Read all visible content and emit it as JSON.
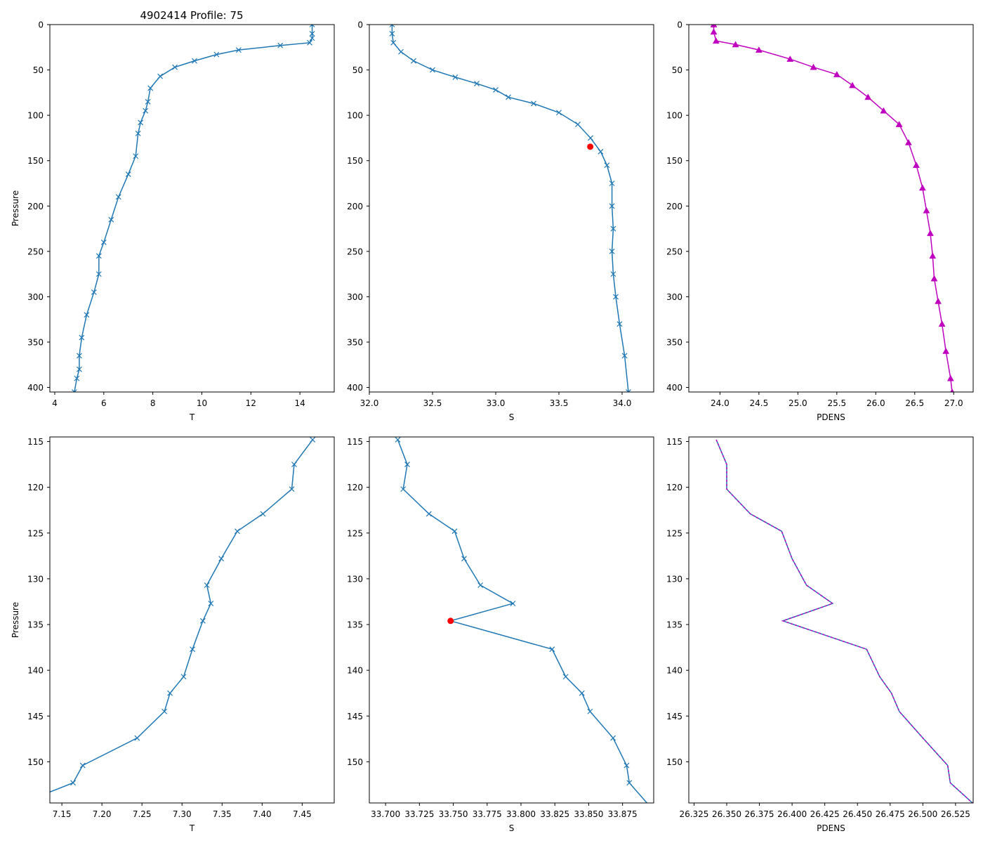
{
  "figure_title": "4902414 Profile: 75",
  "colors": {
    "line": "#1f77b4",
    "pdens": "#bf00bf",
    "flag": "#ff0000",
    "frame": "#000000"
  },
  "chart_data": [
    {
      "id": "top-temperature",
      "type": "line",
      "marker": "x",
      "title": "4902414 Profile: 75",
      "xlabel": "T",
      "ylabel": "Pressure",
      "xlim": [
        3.8,
        15.4
      ],
      "ylim": [
        405,
        0
      ],
      "xticks": [
        4,
        6,
        8,
        10,
        12,
        14
      ],
      "yticks": [
        0,
        50,
        100,
        150,
        200,
        250,
        300,
        350,
        400
      ],
      "series": [
        {
          "name": "T",
          "x": [
            14.5,
            14.5,
            14.5,
            14.4,
            13.2,
            11.5,
            10.6,
            9.7,
            8.9,
            8.3,
            7.9,
            7.8,
            7.7,
            7.5,
            7.4,
            7.3,
            7.0,
            6.6,
            6.3,
            6.0,
            5.8,
            5.8,
            5.6,
            5.3,
            5.1,
            5.0,
            5.0,
            4.9,
            4.8
          ],
          "y": [
            0,
            10,
            15,
            20,
            23,
            28,
            33,
            40,
            47,
            57,
            70,
            85,
            95,
            108,
            120,
            145,
            165,
            190,
            215,
            240,
            255,
            275,
            295,
            320,
            345,
            365,
            380,
            390,
            405
          ]
        }
      ]
    },
    {
      "id": "top-salinity",
      "type": "line",
      "marker": "x",
      "xlabel": "S",
      "ylabel": "",
      "xlim": [
        32.0,
        34.25
      ],
      "ylim": [
        405,
        0
      ],
      "xticks": [
        32.0,
        32.5,
        33.0,
        33.5,
        34.0
      ],
      "yticks": [
        0,
        50,
        100,
        150,
        200,
        250,
        300,
        350,
        400
      ],
      "series": [
        {
          "name": "S",
          "x": [
            32.18,
            32.18,
            32.19,
            32.25,
            32.35,
            32.5,
            32.68,
            32.85,
            33.0,
            33.1,
            33.3,
            33.5,
            33.65,
            33.75,
            33.83,
            33.88,
            33.92,
            33.92,
            33.93,
            33.92,
            33.93,
            33.95,
            33.98,
            34.02,
            34.05
          ],
          "y": [
            0,
            10,
            20,
            30,
            40,
            50,
            58,
            65,
            72,
            80,
            87,
            97,
            110,
            125,
            140,
            155,
            175,
            200,
            225,
            250,
            275,
            300,
            330,
            365,
            405
          ]
        }
      ],
      "flag_points": [
        {
          "x": 33.748,
          "y": 134.6
        }
      ]
    },
    {
      "id": "top-pdens",
      "type": "line",
      "marker": "^",
      "xlabel": "PDENS",
      "ylabel": "",
      "xlim": [
        23.6,
        27.25
      ],
      "ylim": [
        405,
        0
      ],
      "xticks": [
        24.0,
        24.5,
        25.0,
        25.5,
        26.0,
        26.5,
        27.0
      ],
      "yticks": [
        0,
        50,
        100,
        150,
        200,
        250,
        300,
        350,
        400
      ],
      "series": [
        {
          "name": "PDENS",
          "x": [
            23.92,
            23.92,
            23.95,
            24.2,
            24.5,
            24.9,
            25.2,
            25.5,
            25.7,
            25.9,
            26.1,
            26.3,
            26.42,
            26.52,
            26.6,
            26.65,
            26.7,
            26.73,
            26.75,
            26.8,
            26.85,
            26.9,
            26.96,
            26.98
          ],
          "y": [
            0,
            8,
            18,
            22,
            28,
            38,
            47,
            55,
            67,
            80,
            95,
            110,
            130,
            155,
            180,
            205,
            230,
            255,
            280,
            305,
            330,
            360,
            390,
            405
          ]
        }
      ]
    },
    {
      "id": "bottom-temperature",
      "type": "line",
      "marker": "x",
      "xlabel": "T",
      "ylabel": "Pressure",
      "xlim": [
        7.135,
        7.49
      ],
      "ylim": [
        154.5,
        114.5
      ],
      "xticks": [
        7.15,
        7.2,
        7.25,
        7.3,
        7.35,
        7.4,
        7.45
      ],
      "yticks": [
        115,
        120,
        125,
        130,
        135,
        140,
        145,
        150
      ],
      "series": [
        {
          "name": "T",
          "x": [
            7.463,
            7.44,
            7.437,
            7.401,
            7.369,
            7.349,
            7.331,
            7.336,
            7.326,
            7.313,
            7.302,
            7.285,
            7.278,
            7.244,
            7.176,
            7.164,
            7.135
          ],
          "y": [
            114.8,
            117.5,
            120.2,
            122.9,
            124.8,
            127.8,
            130.7,
            132.7,
            134.6,
            137.7,
            140.7,
            142.5,
            144.5,
            147.4,
            150.4,
            152.3,
            153.3
          ],
          "markers": [
            true,
            true,
            true,
            true,
            true,
            true,
            true,
            true,
            true,
            true,
            true,
            true,
            true,
            true,
            true,
            true,
            false
          ]
        }
      ]
    },
    {
      "id": "bottom-salinity",
      "type": "line",
      "marker": "x",
      "xlabel": "S",
      "ylabel": "",
      "xlim": [
        33.688,
        33.898
      ],
      "ylim": [
        154.5,
        114.5
      ],
      "xticks": [
        33.7,
        33.725,
        33.75,
        33.775,
        33.8,
        33.825,
        33.85,
        33.875
      ],
      "yticks": [
        115,
        120,
        125,
        130,
        135,
        140,
        145,
        150
      ],
      "series": [
        {
          "name": "S",
          "x": [
            33.709,
            33.716,
            33.713,
            33.732,
            33.751,
            33.758,
            33.77,
            33.794,
            33.748,
            33.823,
            33.833,
            33.845,
            33.851,
            33.868,
            33.878,
            33.88,
            33.893
          ],
          "y": [
            114.8,
            117.5,
            120.2,
            122.9,
            124.8,
            127.8,
            130.7,
            132.7,
            134.6,
            137.7,
            140.7,
            142.5,
            144.5,
            147.4,
            150.4,
            152.3,
            154.5
          ],
          "markers": [
            true,
            true,
            true,
            true,
            true,
            true,
            true,
            true,
            false,
            true,
            true,
            true,
            true,
            true,
            true,
            true,
            false
          ]
        }
      ],
      "flag_points": [
        {
          "x": 33.748,
          "y": 134.6
        }
      ]
    },
    {
      "id": "bottom-pdens",
      "type": "line",
      "marker": "none",
      "xlabel": "PDENS",
      "ylabel": "",
      "xlim": [
        26.321,
        26.5385
      ],
      "ylim": [
        154.5,
        114.5
      ],
      "xticks": [
        26.325,
        26.35,
        26.375,
        26.4,
        26.425,
        26.45,
        26.475,
        26.5,
        26.525
      ],
      "yticks": [
        115,
        120,
        125,
        130,
        135,
        140,
        145,
        150
      ],
      "series": [
        {
          "name": "PDENS",
          "x": [
            26.342,
            26.35,
            26.35,
            26.368,
            26.392,
            26.4,
            26.411,
            26.431,
            26.393,
            26.457,
            26.467,
            26.476,
            26.482,
            26.5,
            26.519,
            26.521,
            26.538
          ],
          "y": [
            114.8,
            117.5,
            120.2,
            122.9,
            124.8,
            127.8,
            130.7,
            132.7,
            134.6,
            137.7,
            140.7,
            142.5,
            144.5,
            147.4,
            150.4,
            152.3,
            154.5
          ]
        }
      ]
    }
  ]
}
